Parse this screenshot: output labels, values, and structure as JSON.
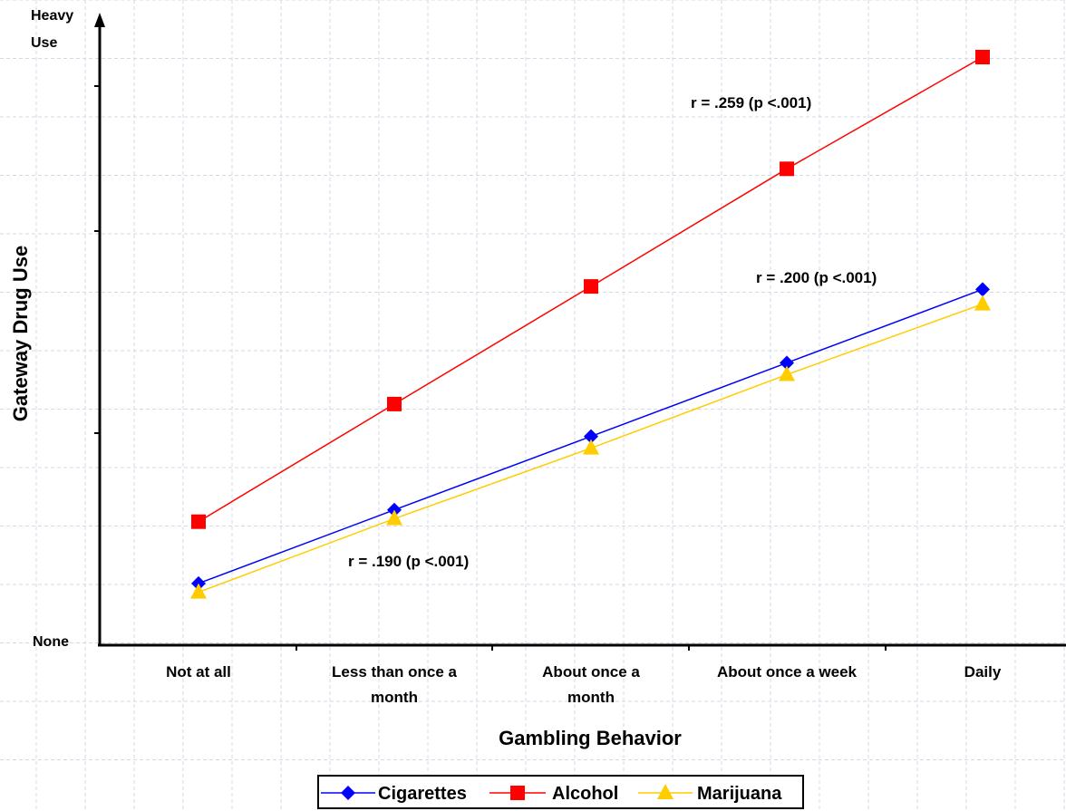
{
  "chart_data": {
    "type": "line",
    "categories": [
      "Not at all",
      "Less than once a month",
      "About once a month",
      "About once a week",
      "Daily"
    ],
    "category_lines": [
      [
        "Not at all"
      ],
      [
        "Less than once a",
        "month"
      ],
      [
        "About once a",
        "month"
      ],
      [
        "About once a week"
      ],
      [
        "Daily"
      ]
    ],
    "y_axis_labels": {
      "top_lines": [
        "Heavy",
        "Use"
      ],
      "bottom": "None"
    },
    "ylim": [
      0,
      100
    ],
    "grid": true,
    "series": [
      {
        "name": "Cigarettes",
        "values": [
          10.5,
          23,
          35.5,
          48,
          60.5
        ],
        "color": "#0000ff",
        "marker": "diamond"
      },
      {
        "name": "Alcohol",
        "values": [
          21,
          41,
          61,
          81,
          100
        ],
        "color": "#ff0000",
        "marker": "square"
      },
      {
        "name": "Marijuana",
        "values": [
          9,
          21.5,
          33.5,
          46,
          58
        ],
        "color": "#ffcc00",
        "marker": "triangle"
      }
    ],
    "annotations": [
      {
        "text": "r = .259 (p <.001)",
        "series": "Alcohol"
      },
      {
        "text": "r = .200 (p <.001)",
        "series": "Cigarettes"
      },
      {
        "text": "r = .190 (p <.001)",
        "series": "Marijuana"
      }
    ],
    "xlabel": "Gambling Behavior",
    "ylabel": "Gateway Drug Use",
    "legend_position": "bottom-center"
  }
}
